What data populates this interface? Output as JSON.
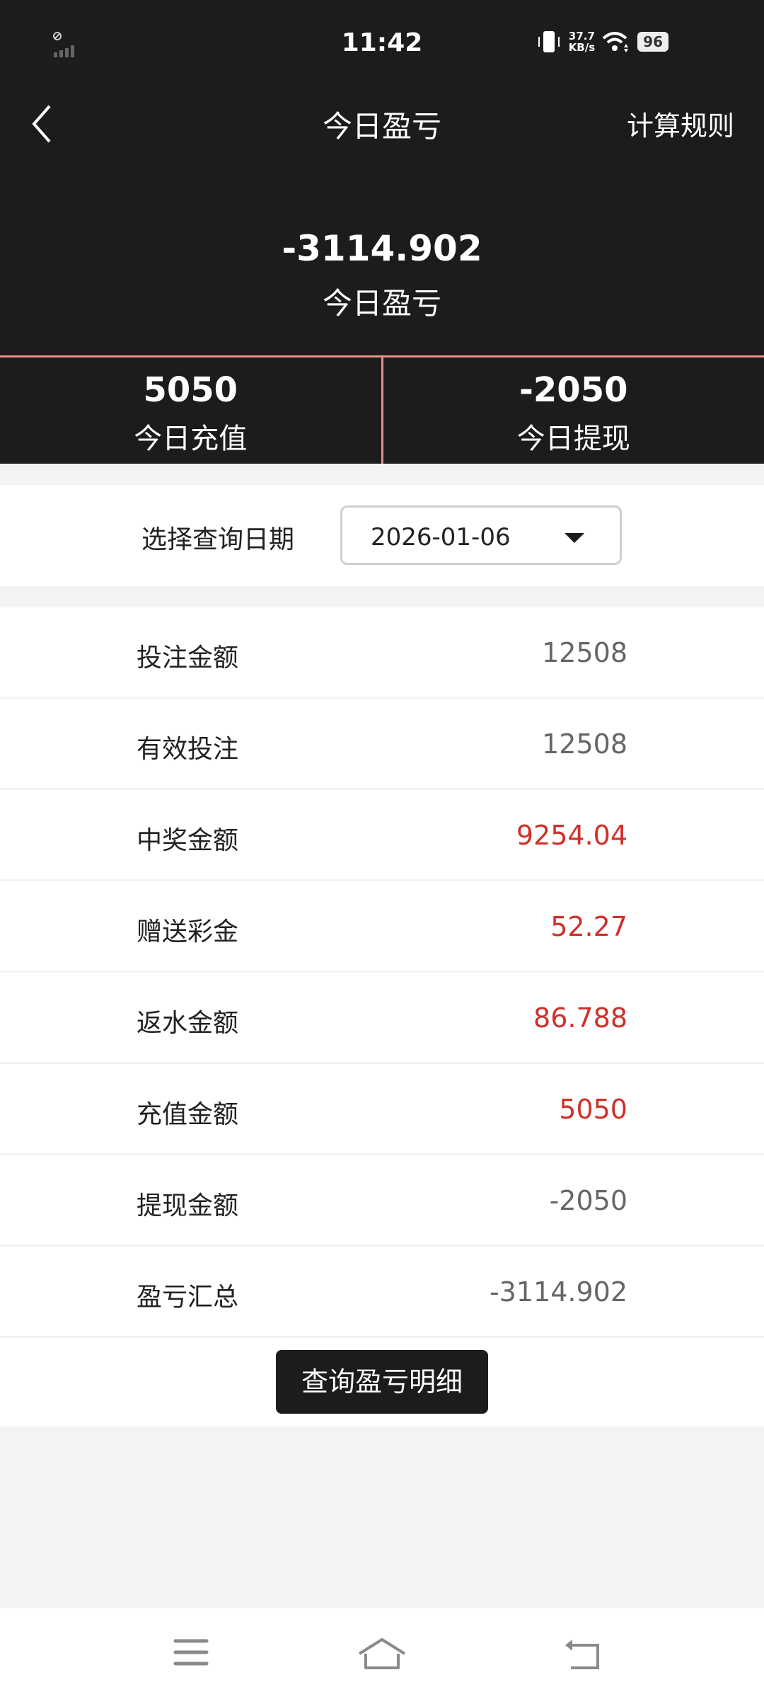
{
  "status_bar": {
    "time": "11:42",
    "net_speed_value": "37.7",
    "net_speed_unit": "KB/s",
    "battery": "96"
  },
  "header": {
    "title": "今日盈亏",
    "rules_label": "计算规则"
  },
  "summary": {
    "profit_value": "-3114.902",
    "profit_label": "今日盈亏",
    "recharge_value": "5050",
    "recharge_label": "今日充值",
    "withdraw_value": "-2050",
    "withdraw_label": "今日提现"
  },
  "date_filter": {
    "label": "选择查询日期",
    "value": "2026-01-06"
  },
  "rows": [
    {
      "label": "投注金额",
      "value": "12508",
      "highlight": false
    },
    {
      "label": "有效投注",
      "value": "12508",
      "highlight": false
    },
    {
      "label": "中奖金额",
      "value": "9254.04",
      "highlight": true
    },
    {
      "label": "赠送彩金",
      "value": "52.27",
      "highlight": true
    },
    {
      "label": "返水金额",
      "value": "86.788",
      "highlight": true
    },
    {
      "label": "充值金额",
      "value": "5050",
      "highlight": true
    },
    {
      "label": "提现金额",
      "value": "-2050",
      "highlight": false
    },
    {
      "label": "盈亏汇总",
      "value": "-3114.902",
      "highlight": false
    }
  ],
  "detail_button": "查询盈亏明细",
  "colors": {
    "header_bg": "#1c1c1c",
    "highlight": "#d0302a",
    "divider_accent": "#e8918a"
  }
}
